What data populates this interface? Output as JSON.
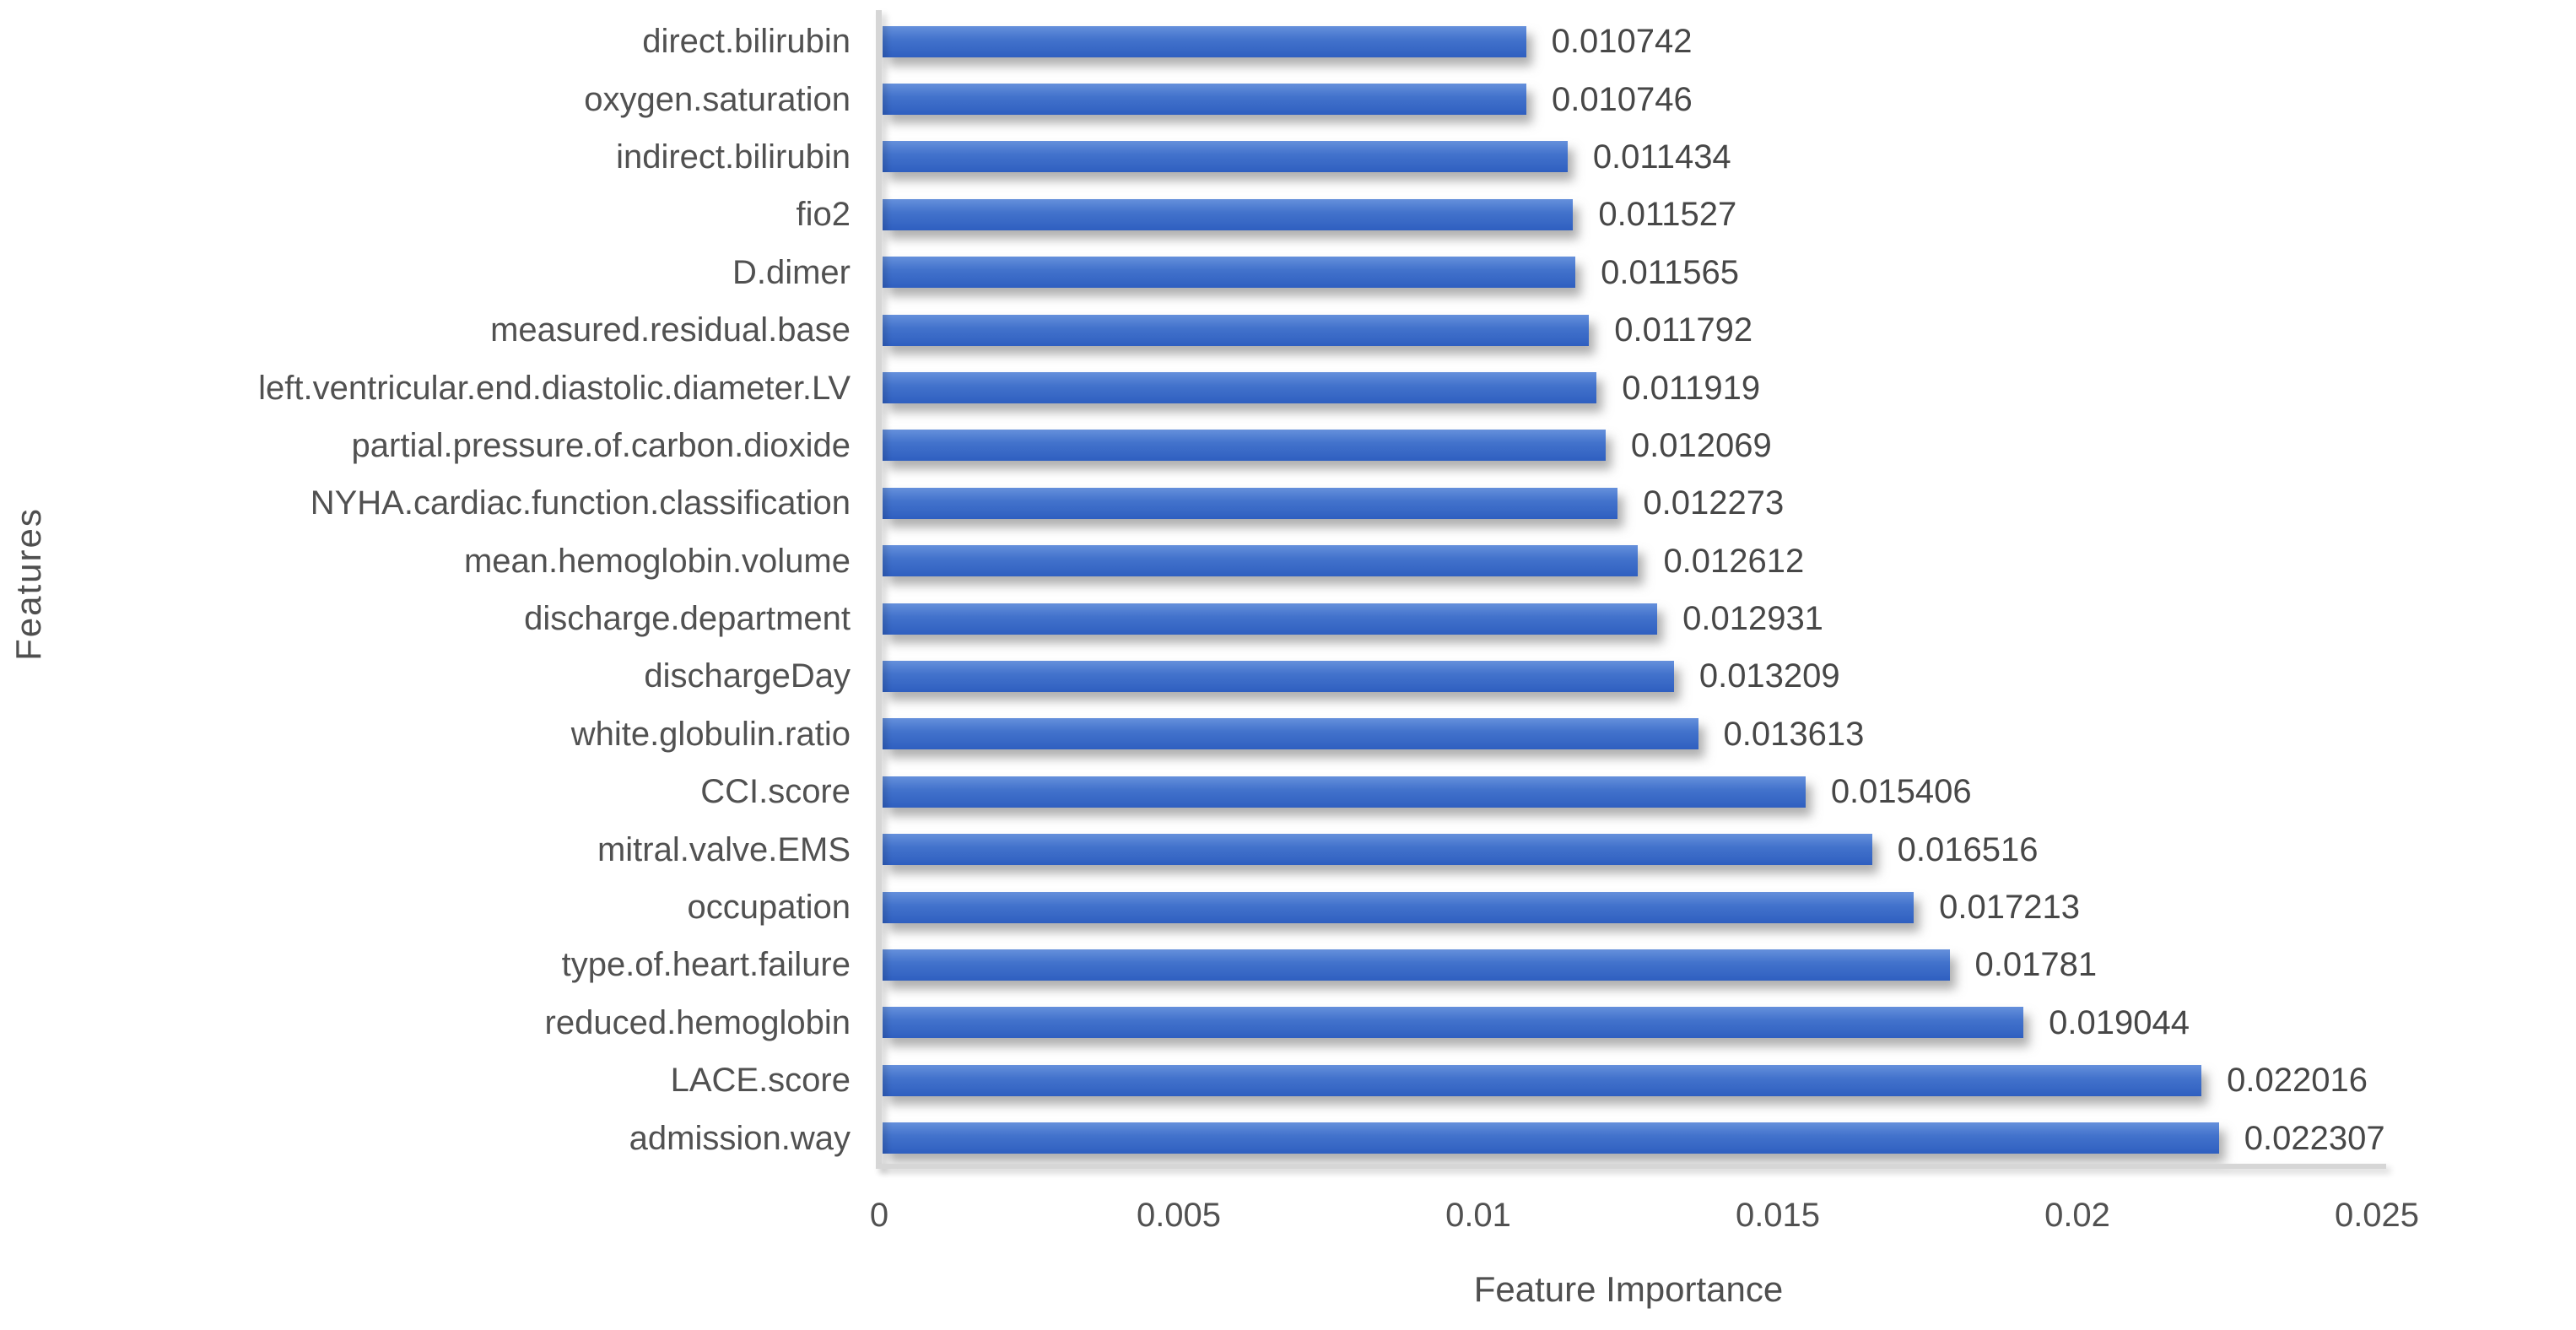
{
  "chart_data": {
    "type": "bar",
    "orientation": "horizontal",
    "title": "",
    "xlabel": "Feature Importance",
    "ylabel": "Features",
    "xlim": [
      0,
      0.025
    ],
    "grid": false,
    "legend": false,
    "categories": [
      "direct.bilirubin",
      "oxygen.saturation",
      "indirect.bilirubin",
      "fio2",
      "D.dimer",
      "measured.residual.base",
      "left.ventricular.end.diastolic.diameter.LV",
      "partial.pressure.of.carbon.dioxide",
      "NYHA.cardiac.function.classification",
      "mean.hemoglobin.volume",
      "discharge.department",
      "dischargeDay",
      "white.globulin.ratio",
      "CCI.score",
      "mitral.valve.EMS",
      "occupation",
      "type.of.heart.failure",
      "reduced.hemoglobin",
      "LACE.score",
      "admission.way"
    ],
    "values": [
      0.010742,
      0.010746,
      0.011434,
      0.011527,
      0.011565,
      0.011792,
      0.011919,
      0.012069,
      0.012273,
      0.012612,
      0.012931,
      0.013209,
      0.013613,
      0.015406,
      0.016516,
      0.017213,
      0.01781,
      0.019044,
      0.022016,
      0.022307
    ],
    "value_labels": [
      "0.010742",
      "0.010746",
      "0.011434",
      "0.011527",
      "0.011565",
      "0.011792",
      "0.011919",
      "0.012069",
      "0.012273",
      "0.012612",
      "0.012931",
      "0.013209",
      "0.013613",
      "0.015406",
      "0.016516",
      "0.017213",
      "0.01781",
      "0.019044",
      "0.022016",
      "0.022307"
    ],
    "x_ticks": [
      "0",
      "0.005",
      "0.01",
      "0.015",
      "0.02",
      "0.025"
    ],
    "x_tick_values": [
      0,
      0.005,
      0.01,
      0.015,
      0.02,
      0.025
    ]
  },
  "colors": {
    "bar_gradient_top": "#6590dc",
    "bar_gradient_mid": "#4373cc",
    "bar_gradient_bottom": "#2f5fc0",
    "axis_line": "#d6d6d6",
    "text": "#4f4f4f"
  }
}
